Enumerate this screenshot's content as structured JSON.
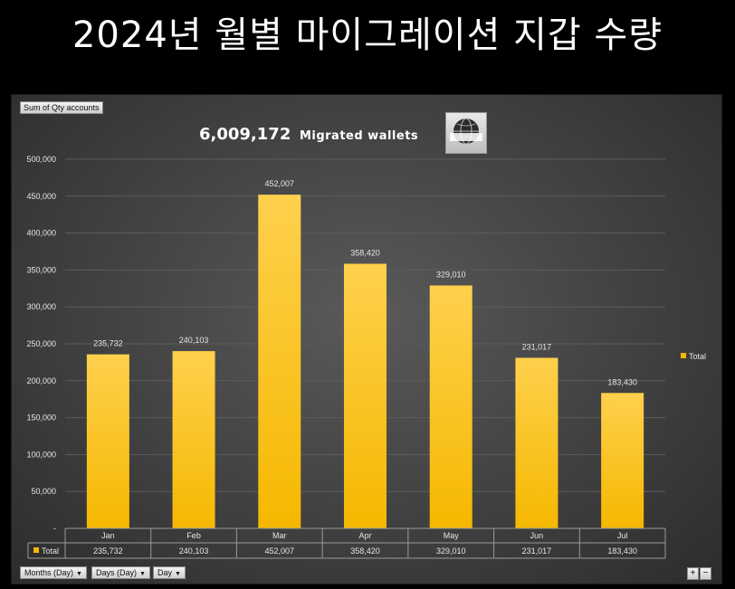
{
  "headline": "2024년 월별 마이그레이션 지갑 수량",
  "field_button": "Sum of Qty accounts",
  "chart_title_number": "6,009,172",
  "chart_title_text": "Migrated wallets",
  "logo_text": "DAO World",
  "legend_label": "Total",
  "table_row_label": "Total",
  "filters": [
    "Months (Day)",
    "Days (Day)",
    "Day"
  ],
  "zoom_buttons": [
    "+",
    "−"
  ],
  "colors": {
    "bar_top": "#ffd04d",
    "bar_bottom": "#f5b800",
    "grid": "#5c5c5c",
    "label": "#e6e6e6"
  },
  "chart_data": {
    "type": "bar",
    "categories": [
      "Jan",
      "Feb",
      "Mar",
      "Apr",
      "May",
      "Jun",
      "Jul"
    ],
    "series": [
      {
        "name": "Total",
        "values": [
          235732,
          240103,
          452007,
          358420,
          329010,
          231017,
          183430
        ]
      }
    ],
    "value_labels": [
      "235,732",
      "240,103",
      "452,007",
      "358,420",
      "329,010",
      "231,017",
      "183,430"
    ],
    "y_ticks": [
      "-",
      "50,000",
      "100,000",
      "150,000",
      "200,000",
      "250,000",
      "300,000",
      "350,000",
      "400,000",
      "450,000",
      "500,000"
    ],
    "ylim": [
      0,
      500000
    ],
    "grid": true,
    "legend_position": "right"
  }
}
